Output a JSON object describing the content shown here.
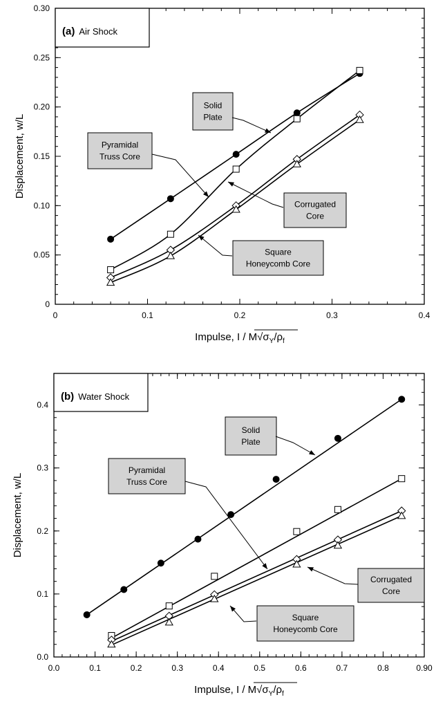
{
  "chart_data": [
    {
      "type": "line",
      "panel_letter": "(a)",
      "panel_title": "Air Shock",
      "xlabel": "Impulse, I / M√σ",
      "xlabel_sub_y": "Y",
      "xlabel_rho": "/ρ",
      "xlabel_sub_f": "f",
      "ylabel": "Displacement, w/L",
      "xlim": [
        0,
        0.4
      ],
      "ylim": [
        0,
        0.3
      ],
      "xticks": [
        "0",
        "0.1",
        "0.2",
        "0.3",
        "0.4"
      ],
      "yticks": [
        "0",
        "0.05",
        "0.10",
        "0.15",
        "0.20",
        "0.25",
        "0.30"
      ],
      "series": [
        {
          "name": "Solid Plate",
          "marker": "filled-circle",
          "x": [
            0.06,
            0.125,
            0.196,
            0.262,
            0.33
          ],
          "y": [
            0.066,
            0.107,
            0.152,
            0.194,
            0.234
          ]
        },
        {
          "name": "Pyramidal Truss Core",
          "marker": "open-square",
          "x": [
            0.06,
            0.125,
            0.196,
            0.262,
            0.33
          ],
          "y": [
            0.035,
            0.071,
            0.137,
            0.188,
            0.237
          ]
        },
        {
          "name": "Corrugated Core",
          "marker": "open-diamond",
          "x": [
            0.06,
            0.125,
            0.196,
            0.262,
            0.33
          ],
          "y": [
            0.027,
            0.055,
            0.1,
            0.147,
            0.192
          ]
        },
        {
          "name": "Square Honeycomb Core",
          "marker": "open-triangle",
          "x": [
            0.06,
            0.125,
            0.196,
            0.262,
            0.33
          ],
          "y": [
            0.022,
            0.049,
            0.096,
            0.142,
            0.187
          ]
        }
      ],
      "callouts": [
        {
          "lines": [
            "Solid",
            "Plate"
          ]
        },
        {
          "lines": [
            "Pyramidal",
            "Truss Core"
          ]
        },
        {
          "lines": [
            "Corrugated",
            "Core"
          ]
        },
        {
          "lines": [
            "Square",
            "Honeycomb Core"
          ]
        }
      ]
    },
    {
      "type": "line",
      "panel_letter": "(b)",
      "panel_title": "Water Shock",
      "xlabel": "Impulse, I / M√σ",
      "xlabel_sub_y": "Y",
      "xlabel_rho": "/ρ",
      "xlabel_sub_f": "f",
      "ylabel": "Displacement, w/L",
      "xlim": [
        0,
        0.9
      ],
      "ylim": [
        0,
        0.45
      ],
      "xticks": [
        "0.0",
        "0.1",
        "0.2",
        "0.3",
        "0.4",
        "0.5",
        "0.6",
        "0.7",
        "0.8",
        "0.90"
      ],
      "yticks": [
        "0.0",
        "0.1",
        "0.2",
        "0.3",
        "0.4"
      ],
      "series": [
        {
          "name": "Solid Plate",
          "marker": "filled-circle",
          "fit": [
            0.08,
            0.067,
            0.845,
            0.409
          ],
          "x": [
            0.08,
            0.17,
            0.26,
            0.35,
            0.43,
            0.54,
            0.69,
            0.845
          ],
          "y": [
            0.067,
            0.107,
            0.149,
            0.187,
            0.226,
            0.282,
            0.347,
            0.409
          ]
        },
        {
          "name": "Pyramidal Truss Core",
          "marker": "open-square",
          "fit": [
            0.14,
            0.03,
            0.845,
            0.283
          ],
          "x": [
            0.14,
            0.28,
            0.39,
            0.59,
            0.69,
            0.845
          ],
          "y": [
            0.034,
            0.081,
            0.128,
            0.199,
            0.234,
            0.283
          ]
        },
        {
          "name": "Corrugated Core",
          "marker": "open-diamond",
          "fit": [
            0.14,
            0.025,
            0.845,
            0.232
          ],
          "x": [
            0.14,
            0.28,
            0.39,
            0.59,
            0.69,
            0.845
          ],
          "y": [
            0.027,
            0.065,
            0.099,
            0.155,
            0.186,
            0.232
          ]
        },
        {
          "name": "Square Honeycomb Core",
          "marker": "open-triangle",
          "fit": [
            0.14,
            0.019,
            0.845,
            0.224
          ],
          "x": [
            0.14,
            0.28,
            0.39,
            0.59,
            0.69,
            0.845
          ],
          "y": [
            0.02,
            0.055,
            0.092,
            0.147,
            0.177,
            0.224
          ]
        }
      ],
      "callouts": [
        {
          "lines": [
            "Solid",
            "Plate"
          ]
        },
        {
          "lines": [
            "Pyramidal",
            "Truss Core"
          ]
        },
        {
          "lines": [
            "Corrugated",
            "Core"
          ]
        },
        {
          "lines": [
            "Square",
            "Honeycomb Core"
          ]
        }
      ]
    }
  ]
}
